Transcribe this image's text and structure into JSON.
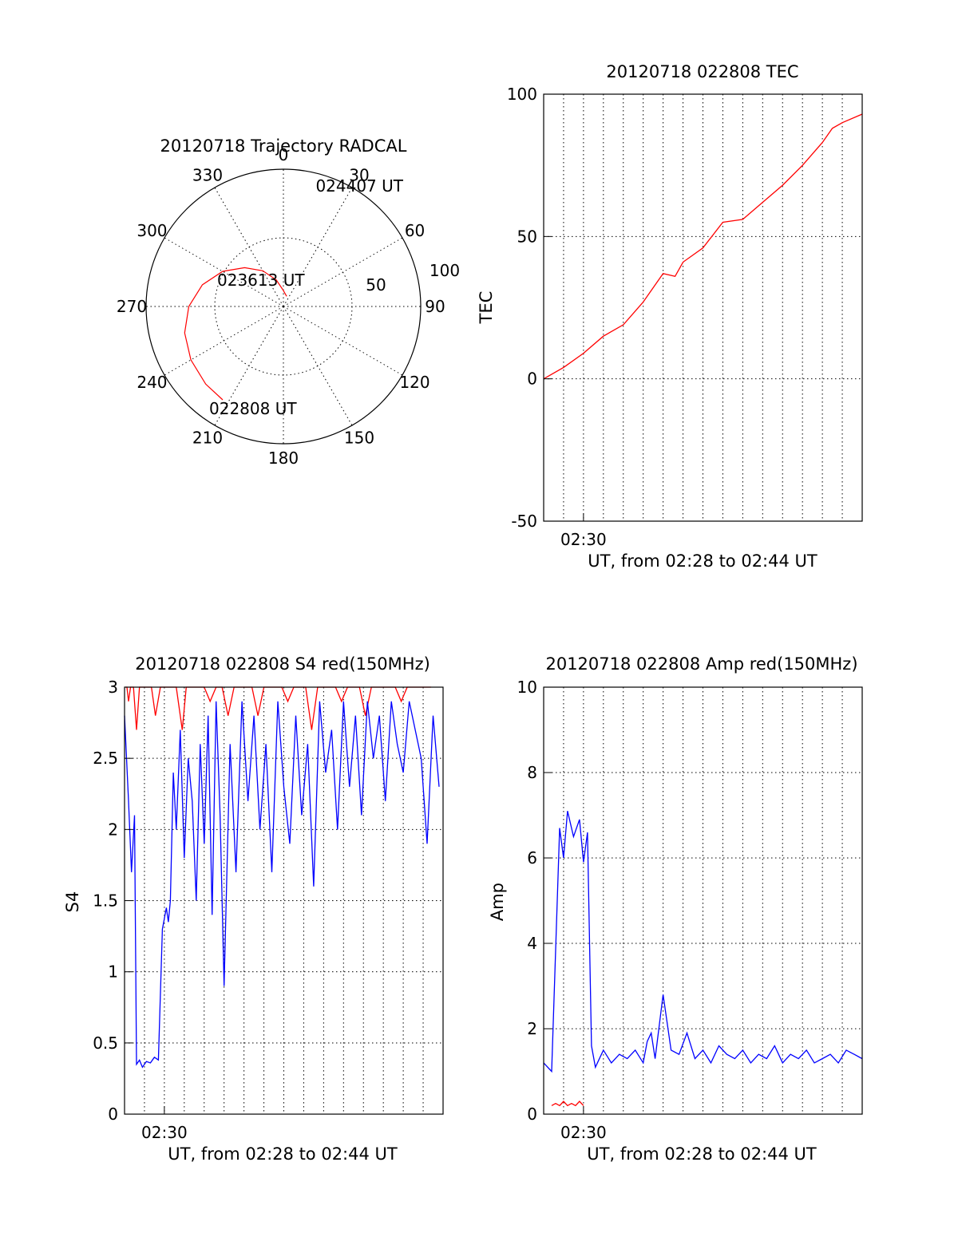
{
  "figure": {
    "background": "#ffffff"
  },
  "chart_data": [
    {
      "id": "trajectory",
      "type": "polar",
      "title": "20120718 Trajectory RADCAL",
      "angle_labels": [
        "0",
        "30",
        "60",
        "90",
        "120",
        "150",
        "180",
        "210",
        "240",
        "270",
        "300",
        "330"
      ],
      "radial_labels": [
        "50",
        "100"
      ],
      "rlim": [
        0,
        100
      ],
      "grid": true,
      "series": [
        {
          "color": "#ff0000",
          "points": [
            {
              "az": 213,
              "el": 17
            },
            {
              "az": 225,
              "el": 18
            },
            {
              "az": 240,
              "el": 20
            },
            {
              "az": 255,
              "el": 23
            },
            {
              "az": 270,
              "el": 28
            },
            {
              "az": 285,
              "el": 35
            },
            {
              "az": 300,
              "el": 44
            },
            {
              "az": 315,
              "el": 54
            },
            {
              "az": 330,
              "el": 63
            },
            {
              "az": 345,
              "el": 72
            },
            {
              "az": 358,
              "el": 79
            },
            {
              "az": 10,
              "el": 82
            },
            {
              "az": 18,
              "el": 83
            }
          ]
        }
      ],
      "annotations": [
        "024407 UT",
        "023613 UT",
        "022808 UT"
      ]
    },
    {
      "id": "tec",
      "type": "line",
      "title": "20120718 022808 TEC",
      "xlabel": "UT, from 02:28 to 02:44 UT",
      "ylabel": "TEC",
      "xlim": [
        0,
        16
      ],
      "ylim": [
        -50,
        100
      ],
      "yticks": [
        "-50",
        "0",
        "50",
        "100"
      ],
      "xticks": [
        {
          "x": 2,
          "label": "02:30"
        }
      ],
      "grid": true,
      "series": [
        {
          "color": "#ff0000",
          "x": [
            0,
            1,
            2,
            3,
            4,
            5,
            6,
            6.6,
            7,
            8,
            9,
            10,
            11,
            12,
            13,
            14,
            14.5,
            15,
            16
          ],
          "y": [
            0,
            4,
            9,
            15,
            19,
            27,
            37,
            36,
            41,
            46,
            55,
            56,
            62,
            68,
            75,
            83,
            88,
            90,
            93
          ]
        }
      ]
    },
    {
      "id": "s4",
      "type": "line",
      "title": "20120718 022808 S4 red(150MHz)",
      "xlabel": "UT, from 02:28 to 02:44 UT",
      "ylabel": "S4",
      "xlim": [
        0,
        16
      ],
      "ylim": [
        0,
        3
      ],
      "yticks": [
        "0",
        "0.5",
        "1",
        "1.5",
        "2",
        "2.5",
        "3"
      ],
      "xticks": [
        {
          "x": 2,
          "label": "02:30"
        }
      ],
      "grid": true,
      "series": [
        {
          "color": "#ff0000",
          "x": [
            0.05,
            0.12,
            0.2,
            0.3,
            0.45,
            0.6,
            0.75,
            0.9,
            1.1,
            1.35,
            1.55,
            1.8,
            2.05,
            2.3,
            2.6,
            2.9,
            3.1,
            3.4,
            3.7,
            4.0,
            4.3,
            4.6,
            4.9,
            5.2,
            5.5,
            5.8,
            6.1,
            6.4,
            6.7,
            7.0,
            7.3,
            7.6,
            7.9,
            8.2,
            8.5,
            8.8,
            9.1,
            9.4,
            9.7,
            10.0,
            10.3,
            10.6,
            10.9,
            11.2,
            11.5,
            11.8,
            12.1,
            12.4,
            12.7,
            13.0,
            13.3,
            13.6,
            13.9,
            14.2,
            14.5,
            14.8,
            15.1,
            15.4
          ],
          "y": [
            3,
            3,
            2.9,
            3,
            3,
            2.7,
            3,
            3,
            3,
            3,
            2.8,
            3,
            3,
            3,
            3,
            2.7,
            3,
            3,
            3,
            3,
            2.9,
            3,
            3,
            2.8,
            3,
            3,
            3,
            3,
            2.8,
            3,
            3,
            3,
            3,
            2.9,
            3,
            3,
            3,
            2.7,
            3,
            3,
            3,
            3,
            2.9,
            3,
            3,
            3,
            2.8,
            3,
            3,
            3,
            3,
            3,
            2.9,
            3,
            3,
            3,
            3,
            3
          ]
        },
        {
          "color": "#0000ff",
          "x": [
            0,
            0.2,
            0.35,
            0.5,
            0.6,
            0.75,
            0.9,
            1.1,
            1.3,
            1.5,
            1.7,
            1.9,
            2.1,
            2.2,
            2.3,
            2.45,
            2.6,
            2.8,
            3.0,
            3.2,
            3.4,
            3.6,
            3.8,
            4.0,
            4.2,
            4.4,
            4.6,
            4.8,
            5.0,
            5.3,
            5.6,
            5.9,
            6.2,
            6.5,
            6.8,
            7.1,
            7.4,
            7.7,
            8.0,
            8.3,
            8.6,
            8.9,
            9.2,
            9.5,
            9.8,
            10.1,
            10.4,
            10.7,
            11.0,
            11.3,
            11.6,
            11.9,
            12.2,
            12.5,
            12.8,
            13.1,
            13.4,
            13.7,
            14.0,
            14.3,
            14.6,
            14.9,
            15.2,
            15.5,
            15.8
          ],
          "y": [
            2.8,
            2.2,
            1.7,
            2.1,
            0.35,
            0.38,
            0.33,
            0.37,
            0.36,
            0.4,
            0.38,
            1.3,
            1.45,
            1.35,
            1.5,
            2.4,
            2.0,
            2.7,
            1.8,
            2.5,
            2.2,
            1.5,
            2.6,
            1.9,
            2.8,
            1.4,
            2.9,
            2.1,
            0.9,
            2.6,
            1.7,
            2.9,
            2.2,
            2.8,
            2.0,
            2.6,
            1.7,
            2.9,
            2.3,
            1.9,
            2.8,
            2.1,
            2.6,
            1.6,
            2.9,
            2.4,
            2.7,
            2.0,
            2.9,
            2.3,
            2.8,
            2.1,
            2.9,
            2.5,
            2.8,
            2.2,
            2.9,
            2.6,
            2.4,
            2.9,
            2.7,
            2.5,
            1.9,
            2.8,
            2.3
          ]
        }
      ]
    },
    {
      "id": "amp",
      "type": "line",
      "title": "20120718 022808 Amp red(150MHz)",
      "xlabel": "UT, from 02:28 to 02:44 UT",
      "ylabel": "Amp",
      "xlim": [
        0,
        16
      ],
      "ylim": [
        0,
        10
      ],
      "yticks": [
        "0",
        "2",
        "4",
        "6",
        "8",
        "10"
      ],
      "xticks": [
        {
          "x": 2,
          "label": "02:30"
        }
      ],
      "grid": true,
      "series": [
        {
          "color": "#0000ff",
          "x": [
            0,
            0.4,
            0.8,
            1.0,
            1.2,
            1.5,
            1.8,
            2.0,
            2.2,
            2.4,
            2.6,
            3.0,
            3.4,
            3.8,
            4.2,
            4.6,
            5.0,
            5.2,
            5.4,
            5.6,
            6.0,
            6.4,
            6.8,
            7.2,
            7.6,
            8.0,
            8.4,
            8.8,
            9.2,
            9.6,
            10.0,
            10.4,
            10.8,
            11.2,
            11.6,
            12.0,
            12.4,
            12.8,
            13.2,
            13.6,
            14.0,
            14.4,
            14.8,
            15.2,
            15.6,
            16.0
          ],
          "y": [
            1.2,
            1.0,
            6.7,
            6.0,
            7.1,
            6.5,
            6.9,
            5.9,
            6.6,
            1.6,
            1.1,
            1.5,
            1.2,
            1.4,
            1.3,
            1.5,
            1.2,
            1.7,
            1.9,
            1.3,
            2.8,
            1.5,
            1.4,
            1.9,
            1.3,
            1.5,
            1.2,
            1.6,
            1.4,
            1.3,
            1.5,
            1.2,
            1.4,
            1.3,
            1.6,
            1.2,
            1.4,
            1.3,
            1.5,
            1.2,
            1.3,
            1.4,
            1.2,
            1.5,
            1.4,
            1.3
          ]
        },
        {
          "color": "#ff0000",
          "x": [
            0.4,
            0.6,
            0.8,
            1.0,
            1.2,
            1.4,
            1.6,
            1.8,
            2.0
          ],
          "y": [
            0.2,
            0.25,
            0.2,
            0.3,
            0.2,
            0.25,
            0.2,
            0.3,
            0.2
          ]
        }
      ]
    }
  ]
}
